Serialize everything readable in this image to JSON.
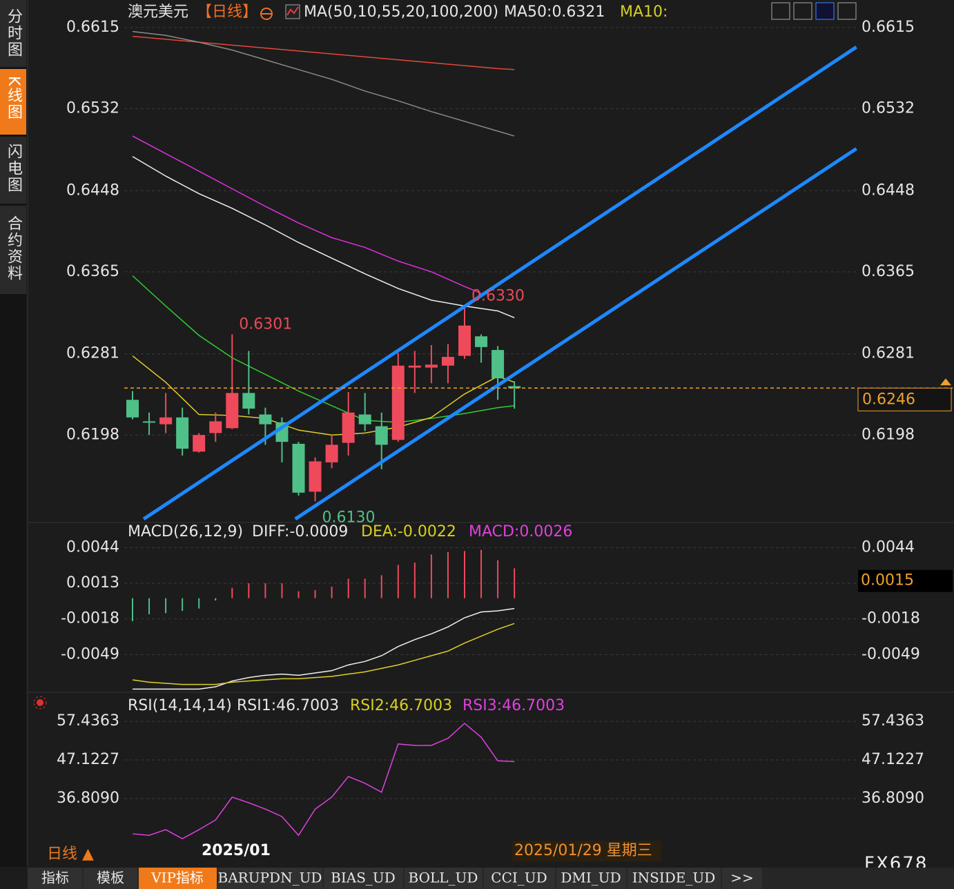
{
  "sidebar": [
    "分时图",
    "K线图",
    "闪电图",
    "合约资料"
  ],
  "header": {
    "symbol": "澳元美元",
    "period": "【日线】",
    "ma_params": "MA(50,10,55,20,100,200)",
    "ma50": "MA50:0.6321",
    "ma10": "MA10:"
  },
  "price_panel": {
    "ylim": [
      0.6112,
      0.6622
    ],
    "yticks": [
      0.6615,
      0.6532,
      0.6448,
      0.6365,
      0.6281,
      0.6198
    ],
    "candles": {
      "open": [
        0.6234,
        0.6212,
        0.6209,
        0.6216,
        0.6181,
        0.62,
        0.6205,
        0.6241,
        0.6219,
        0.6211,
        0.6189,
        0.614,
        0.617,
        0.619,
        0.6219,
        0.6207,
        0.6193,
        0.6267,
        0.6267,
        0.6269,
        0.6279,
        0.6299,
        0.6285,
        0.6248
      ],
      "high": [
        0.6243,
        0.6221,
        0.6241,
        0.6226,
        0.62,
        0.6221,
        0.6301,
        0.6284,
        0.6226,
        0.6216,
        0.6191,
        0.6175,
        0.6198,
        0.6242,
        0.6241,
        0.6221,
        0.6282,
        0.6284,
        0.629,
        0.6291,
        0.633,
        0.6301,
        0.6289,
        0.6253
      ],
      "low": [
        0.6214,
        0.6198,
        0.62,
        0.6177,
        0.618,
        0.6191,
        0.6204,
        0.6219,
        0.6188,
        0.617,
        0.6136,
        0.613,
        0.6164,
        0.6177,
        0.6202,
        0.6163,
        0.6191,
        0.6241,
        0.6251,
        0.6251,
        0.6276,
        0.6272,
        0.6234,
        0.6225
      ],
      "close": [
        0.6216,
        0.6211,
        0.6216,
        0.6184,
        0.6198,
        0.6212,
        0.6241,
        0.6225,
        0.6209,
        0.6191,
        0.6139,
        0.6171,
        0.6188,
        0.6221,
        0.6209,
        0.6188,
        0.6269,
        0.6269,
        0.627,
        0.6278,
        0.631,
        0.6288,
        0.6256,
        0.6246
      ]
    },
    "ma_lines": [
      {
        "color": "#e8463c",
        "x": [
          0,
          2,
          4,
          6,
          8,
          10,
          12,
          14,
          16,
          18,
          20,
          22,
          23
        ],
        "values": [
          0.6606,
          0.6603,
          0.66,
          0.6597,
          0.6594,
          0.6591,
          0.6588,
          0.6585,
          0.6582,
          0.6579,
          0.6576,
          0.6573,
          0.6572
        ]
      },
      {
        "color": "#8a8a8a",
        "x": [
          0,
          2,
          4,
          6,
          8,
          10,
          12,
          14,
          16,
          18,
          20,
          22,
          23
        ],
        "values": [
          0.6611,
          0.6607,
          0.66,
          0.6592,
          0.6582,
          0.6572,
          0.6562,
          0.655,
          0.654,
          0.6529,
          0.6519,
          0.6509,
          0.6504
        ]
      },
      {
        "color": "#e030e0",
        "x": [
          0,
          2,
          4,
          6,
          8,
          10,
          12,
          14,
          16,
          18,
          20,
          21
        ],
        "values": [
          0.6504,
          0.6486,
          0.6468,
          0.645,
          0.6432,
          0.6415,
          0.64,
          0.639,
          0.6376,
          0.6365,
          0.635,
          0.6343
        ]
      },
      {
        "color": "#f0f0f0",
        "x": [
          0,
          2,
          4,
          6,
          8,
          10,
          12,
          14,
          16,
          18,
          20,
          22,
          23
        ],
        "values": [
          0.6483,
          0.6463,
          0.6445,
          0.643,
          0.6413,
          0.6395,
          0.6379,
          0.6363,
          0.6348,
          0.6336,
          0.633,
          0.6325,
          0.6318
        ]
      },
      {
        "color": "#30d030",
        "x": [
          0,
          2,
          4,
          6,
          8,
          10,
          12,
          14,
          16,
          18,
          20,
          22,
          23
        ],
        "values": [
          0.6361,
          0.633,
          0.63,
          0.6277,
          0.626,
          0.6243,
          0.6228,
          0.6213,
          0.6211,
          0.6215,
          0.622,
          0.6226,
          0.6228
        ]
      },
      {
        "color": "#e0d028",
        "x": [
          0,
          2,
          4,
          6,
          8,
          10,
          12,
          14,
          16,
          18,
          20,
          22,
          23
        ],
        "values": [
          0.6279,
          0.6252,
          0.6219,
          0.6218,
          0.6215,
          0.6203,
          0.6198,
          0.62,
          0.6206,
          0.6216,
          0.624,
          0.6258,
          0.6252
        ]
      }
    ],
    "channel_lines": [
      {
        "color": "#1e88ff",
        "x": [
          0.67,
          43.6
        ],
        "values": [
          0.6112,
          0.6595
        ]
      },
      {
        "color": "#1e88ff",
        "x": [
          9.8,
          43.6
        ],
        "values": [
          0.6112,
          0.6491
        ]
      }
    ],
    "high_label": {
      "value": 0.633,
      "label": "0.6330"
    },
    "local_high_label": 0.6301,
    "low_label": {
      "value": 0.613,
      "label": "0.6130"
    },
    "last_price": 0.6246
  },
  "macd_panel": {
    "title": "MACD(26,12,9)",
    "diff_label": "DIFF:-0.0009",
    "dea_label": "DEA:-0.0022",
    "macd_label": "MACD:0.0026",
    "ylim": [
      -0.008,
      0.0058
    ],
    "yticks": [
      0.0044,
      0.0013,
      -0.0018,
      -0.0049
    ],
    "cursor_value": 0.0015,
    "bars": [
      -0.002,
      -0.0014,
      -0.0013,
      -0.0011,
      -0.0009,
      -0.0002,
      0.0009,
      0.0013,
      0.0013,
      0.0013,
      0.0006,
      0.0007,
      0.001,
      0.0017,
      0.0017,
      0.002,
      0.0029,
      0.0031,
      0.0038,
      0.004,
      0.0041,
      0.0042,
      0.0033,
      0.0026
    ],
    "diff": [
      -0.0079,
      -0.0079,
      -0.0079,
      -0.0079,
      -0.0079,
      -0.0077,
      -0.0072,
      -0.0069,
      -0.0067,
      -0.0066,
      -0.0067,
      -0.0065,
      -0.0063,
      -0.0058,
      -0.0055,
      -0.005,
      -0.0042,
      -0.0036,
      -0.0031,
      -0.0025,
      -0.0017,
      -0.0012,
      -0.0011,
      -0.0009
    ],
    "dea": [
      -0.0071,
      -0.0073,
      -0.0074,
      -0.0075,
      -0.0075,
      -0.0075,
      -0.0073,
      -0.0072,
      -0.0071,
      -0.007,
      -0.007,
      -0.0069,
      -0.0068,
      -0.0066,
      -0.0064,
      -0.0061,
      -0.0058,
      -0.0054,
      -0.005,
      -0.0046,
      -0.0039,
      -0.0033,
      -0.0027,
      -0.0022
    ]
  },
  "rsi_panel": {
    "title": "RSI(14,14,14)",
    "rsi1_label": "RSI1:46.7003",
    "rsi2_label": "RSI2:46.7003",
    "rsi3_label": "RSI3:46.7003",
    "ylim": [
      25.2,
      63.9
    ],
    "yticks": [
      57.4363,
      47.1227,
      {
        "value": 36.809,
        "label": "36.8090"
      }
    ],
    "values": [
      27.4,
      27.0,
      28.5,
      26.1,
      28.5,
      31.1,
      37.2,
      35.7,
      34.0,
      32.0,
      27.0,
      34.0,
      37.2,
      42.7,
      40.9,
      38.5,
      51.4,
      51.0,
      51.0,
      52.9,
      56.9,
      53.2,
      46.9,
      46.7003
    ]
  },
  "footer": {
    "period": "日线 ▲",
    "month": "2025/01",
    "cursor_date": "2025/01/29 星期三",
    "brand": "FX678",
    "tabs": [
      "指标",
      "模板",
      "VIP指标",
      "BARUPDN_UD",
      "BIAS_UD",
      "BOLL_UD",
      "CCI_UD",
      "DMI_UD",
      "INSIDE_UD",
      ">>"
    ]
  }
}
